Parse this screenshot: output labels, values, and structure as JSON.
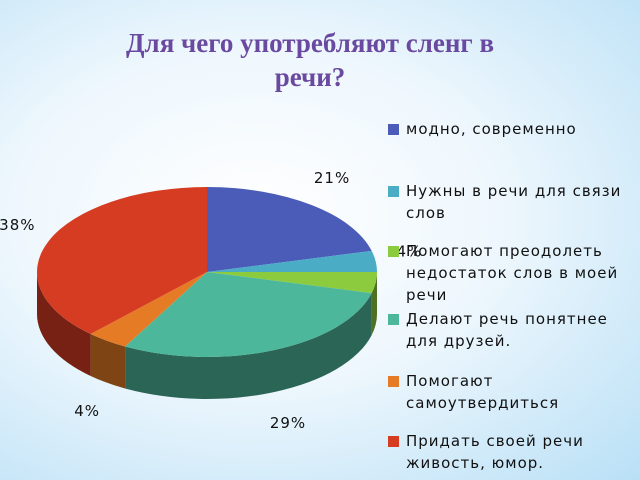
{
  "chart_data": {
    "type": "pie3d",
    "title": "Для чего  употребляют сленг в речи?",
    "categories": [
      "модно, современно",
      "Нужны в речи для связи слов",
      "Помогают преодолеть недостаток слов в моей речи",
      "Делают речь понятнее для друзей.",
      "Помогают самоутвердиться",
      "Придать своей речи живость, юмор."
    ],
    "values": [
      21,
      4,
      4,
      29,
      4,
      38
    ],
    "value_labels": [
      "21%",
      "4%",
      null,
      "29%",
      "4%",
      "38%"
    ],
    "colors": [
      "#4a5cb8",
      "#4bacc6",
      "#8dcb3e",
      "#4db79b",
      "#e57c25",
      "#d63c22"
    ],
    "legend": "right"
  }
}
